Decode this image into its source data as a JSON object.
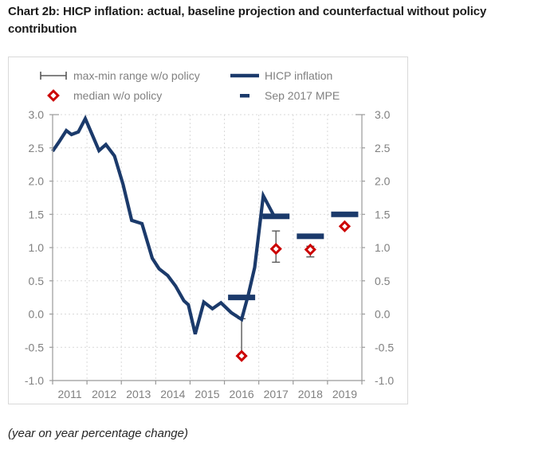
{
  "title": "Chart 2b: HICP inflation: actual, baseline projection and counterfactual without policy contribution",
  "footer": "(year on year percentage change)",
  "legend": {
    "max_min": "max-min range w/o policy",
    "hicp": "HICP inflation",
    "median": "median w/o policy",
    "mpe": "Sep 2017 MPE"
  },
  "colors": {
    "navy": "#1b3a6b",
    "red": "#cc0000",
    "axis_text": "#808080",
    "axis_line": "#999999",
    "grid": "#d9d9d9",
    "range_bar": "#595959",
    "frame": "#d9d9d9",
    "title_text": "#1a1a1a",
    "footer_text": "#262626"
  },
  "chart_data": {
    "type": "line",
    "title": "HICP inflation: actual, baseline projection and counterfactual without policy contribution",
    "ylabel": "year on year percentage change",
    "ylim": [
      -1.0,
      3.0
    ],
    "xlim": [
      2011,
      2020
    ],
    "grid": true,
    "legend_position": "top-left-inside",
    "yticks": {
      "values": [
        3.0,
        2.5,
        2.0,
        1.5,
        1.0,
        0.5,
        0.0,
        -0.5,
        -1.0
      ],
      "labels": [
        "3.0",
        "2.5",
        "2.0",
        "1.5",
        "1.0",
        "0.5",
        "0.0",
        "-0.5",
        "-1.0"
      ]
    },
    "xticks": {
      "labels": [
        "2011",
        "2012",
        "2013",
        "2014",
        "2015",
        "2016",
        "2017",
        "2018",
        "2019"
      ],
      "label_centers": [
        2011.5,
        2012.5,
        2013.5,
        2014.5,
        2015.5,
        2016.5,
        2017.5,
        2018.5,
        2019.5
      ],
      "boundaries": [
        2011,
        2012,
        2013,
        2014,
        2015,
        2016,
        2017,
        2018,
        2019,
        2020
      ]
    },
    "x_gridlines": [
      2012,
      2013,
      2014,
      2015,
      2016,
      2017,
      2018,
      2019
    ],
    "series": [
      {
        "name": "HICP inflation",
        "type": "line",
        "points": [
          [
            2011.0,
            2.45
          ],
          [
            2011.2,
            2.6
          ],
          [
            2011.4,
            2.76
          ],
          [
            2011.55,
            2.7
          ],
          [
            2011.75,
            2.74
          ],
          [
            2011.95,
            2.94
          ],
          [
            2012.15,
            2.7
          ],
          [
            2012.35,
            2.46
          ],
          [
            2012.55,
            2.55
          ],
          [
            2012.8,
            2.38
          ],
          [
            2013.05,
            1.95
          ],
          [
            2013.3,
            1.41
          ],
          [
            2013.6,
            1.36
          ],
          [
            2013.9,
            0.84
          ],
          [
            2014.1,
            0.68
          ],
          [
            2014.35,
            0.58
          ],
          [
            2014.58,
            0.42
          ],
          [
            2014.82,
            0.2
          ],
          [
            2014.95,
            0.14
          ],
          [
            2015.15,
            -0.3
          ],
          [
            2015.4,
            0.18
          ],
          [
            2015.65,
            0.08
          ],
          [
            2015.9,
            0.17
          ],
          [
            2016.2,
            0.02
          ],
          [
            2016.5,
            -0.08
          ],
          [
            2016.7,
            0.3
          ],
          [
            2016.88,
            0.7
          ],
          [
            2017.13,
            1.78
          ],
          [
            2017.45,
            1.47
          ],
          [
            2017.75,
            1.47
          ]
        ]
      },
      {
        "name": "Sep 2017 MPE",
        "type": "dash",
        "points": [
          [
            2016.5,
            0.25
          ],
          [
            2017.5,
            1.47
          ],
          [
            2018.5,
            1.17
          ],
          [
            2019.5,
            1.5
          ]
        ]
      },
      {
        "name": "median w/o policy",
        "type": "diamond",
        "points": [
          [
            2016.5,
            -0.63
          ],
          [
            2017.5,
            0.98
          ],
          [
            2018.5,
            0.97
          ],
          [
            2019.5,
            1.32
          ]
        ]
      },
      {
        "name": "max-min range w/o policy",
        "type": "range",
        "bars": [
          {
            "x": 2016.5,
            "min": -0.6,
            "max": -0.07
          },
          {
            "x": 2017.5,
            "min": 0.78,
            "max": 1.25
          },
          {
            "x": 2018.5,
            "min": 0.86,
            "max": 1.02
          },
          {
            "x": 2019.5,
            "min": null,
            "max": null
          }
        ]
      }
    ]
  }
}
